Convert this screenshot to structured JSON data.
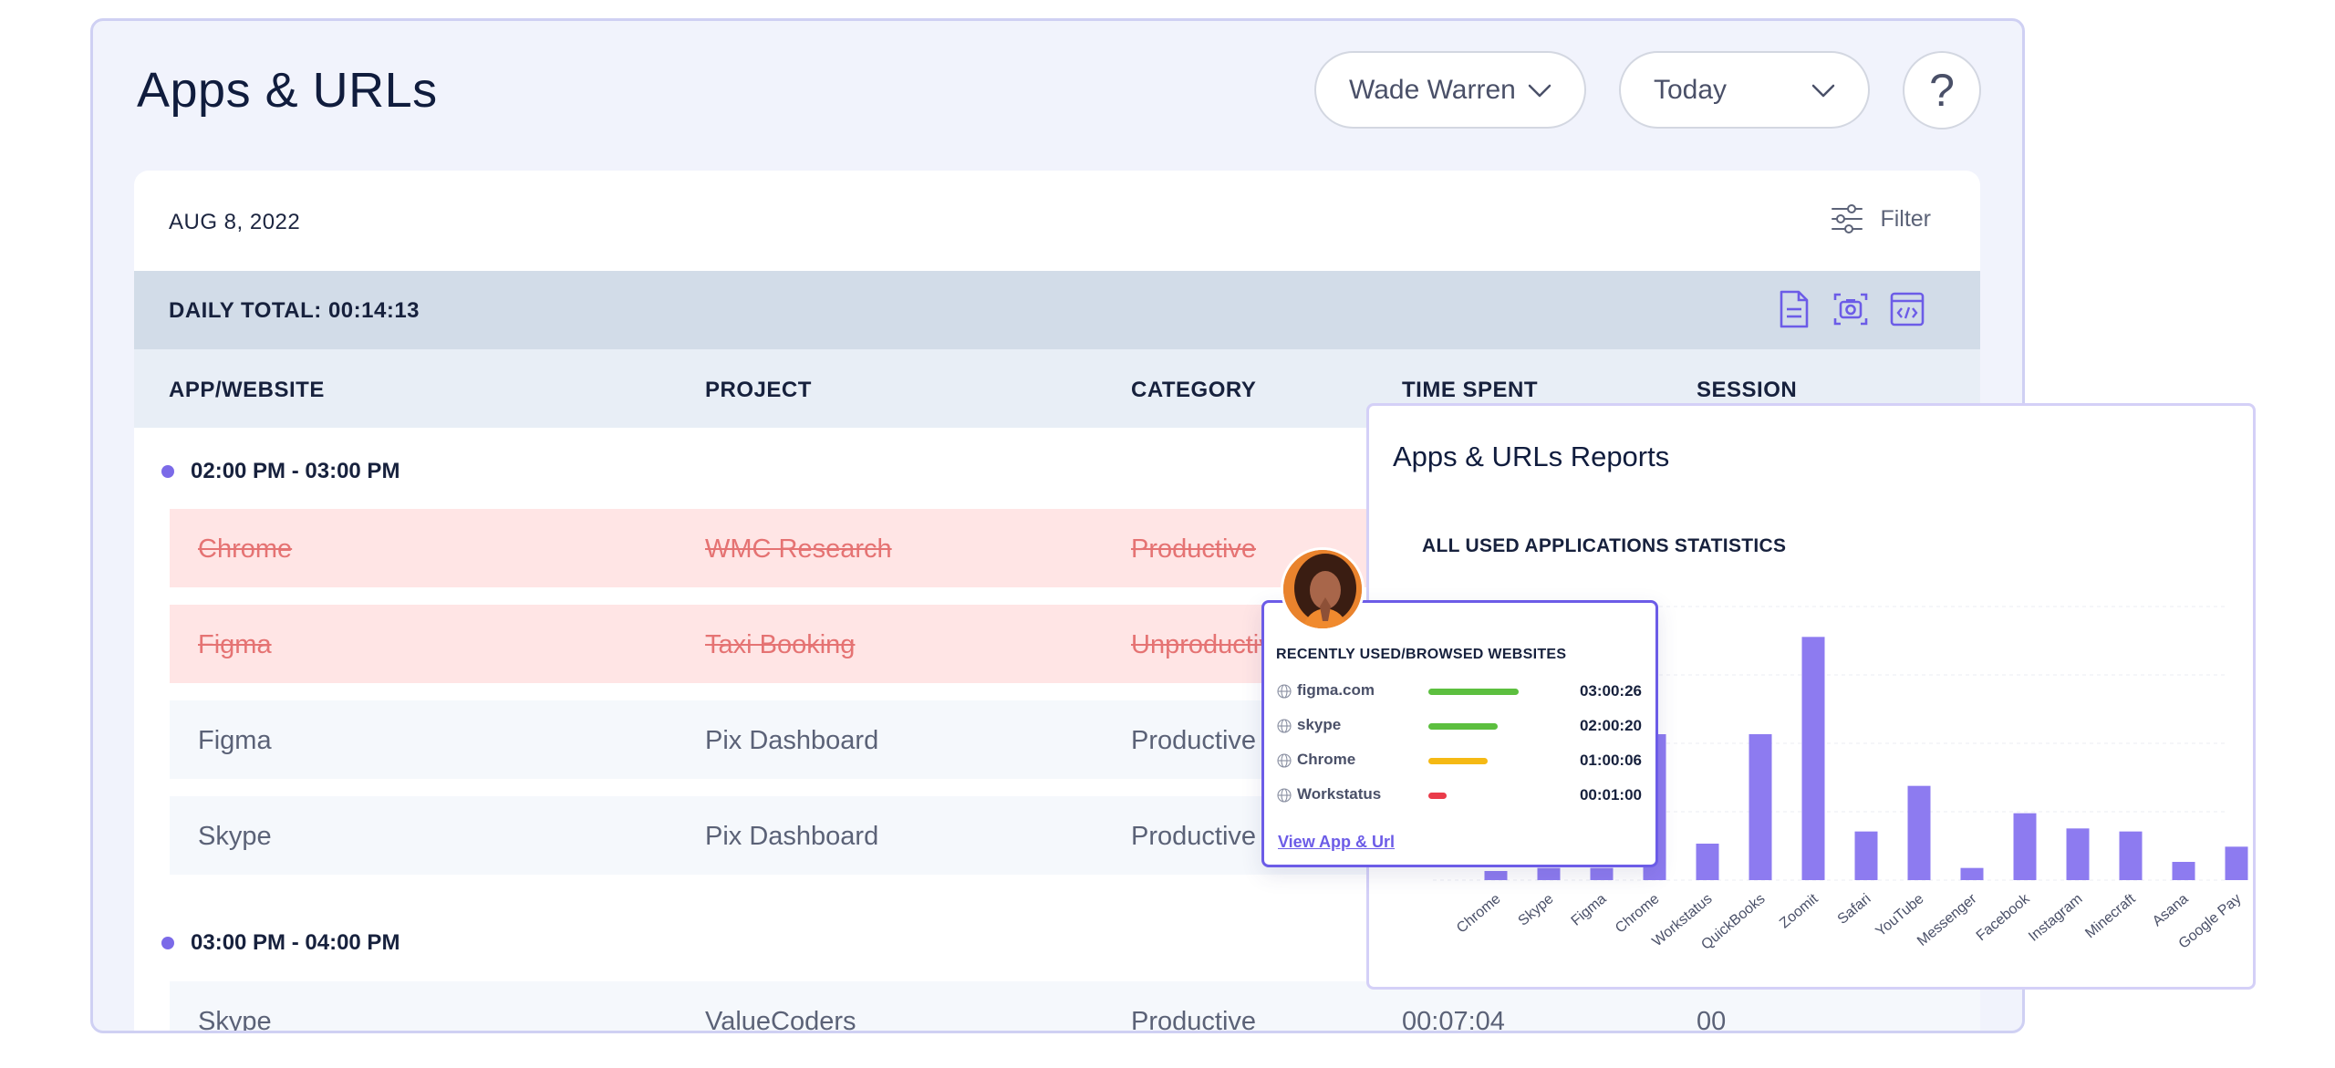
{
  "header": {
    "title": "Apps & URLs",
    "user_select": "Wade Warren",
    "date_select": "Today",
    "help_label": "?"
  },
  "card": {
    "date": "AUG 8, 2022",
    "filter_label": "Filter",
    "daily_total": "DAILY TOTAL: 00:14:13"
  },
  "table": {
    "columns": [
      "APP/WEBSITE",
      "PROJECT",
      "CATEGORY",
      "TIME SPENT",
      "SESSION"
    ],
    "groups": [
      {
        "label": "02:00 PM - 03:00 PM",
        "rows": [
          {
            "app": "Chrome",
            "project": "WMC Research",
            "category": "Productive",
            "time": "",
            "session": "",
            "removed": true
          },
          {
            "app": "Figma",
            "project": "Taxi Booking",
            "category": "Unproductive",
            "time": "",
            "session": "",
            "removed": true
          },
          {
            "app": "Figma",
            "project": "Pix Dashboard",
            "category": "Productive",
            "time": "",
            "session": "",
            "removed": false
          },
          {
            "app": "Skype",
            "project": "Pix Dashboard",
            "category": "Productive",
            "time": "",
            "session": "",
            "removed": false
          }
        ]
      },
      {
        "label": "03:00 PM - 04:00 PM",
        "rows": [
          {
            "app": "Skype",
            "project": "ValueCoders",
            "category": "Productive",
            "time": "00:07:04",
            "session": "00",
            "removed": false
          }
        ]
      }
    ]
  },
  "reports": {
    "title": "Apps & URLs Reports",
    "subtitle": "ALL USED APPLICATIONS STATISTICS"
  },
  "chart_data": {
    "type": "bar",
    "title": "ALL USED APPLICATIONS STATISTICS",
    "categories": [
      "Chrome",
      "Skype",
      "Figma",
      "Chrome",
      "Workstatus",
      "QuickBooks",
      "Zoomit",
      "Safari",
      "YouTube",
      "Messenger",
      "Facebook",
      "Instagram",
      "Minecraft",
      "Asana",
      "Google Pay"
    ],
    "values": [
      3,
      4,
      4,
      48,
      12,
      48,
      80,
      16,
      31,
      4,
      22,
      17,
      16,
      6,
      11
    ],
    "ylim": [
      0,
      90
    ],
    "bar_color": "#8d7bf0",
    "grid": true
  },
  "popup": {
    "title": "RECENTLY USED/BROWSED WEBSITES",
    "sites": [
      {
        "name": "figma.com",
        "time": "03:00:26",
        "fraction": 0.55,
        "color": "#5cbf3f"
      },
      {
        "name": "skype",
        "time": "02:00:20",
        "fraction": 0.42,
        "color": "#5cbf3f"
      },
      {
        "name": "Chrome",
        "time": "01:00:06",
        "fraction": 0.36,
        "color": "#f5b914"
      },
      {
        "name": "Workstatus",
        "time": "00:01:00",
        "fraction": 0.11,
        "color": "#ea3b4a"
      }
    ],
    "link": "View App & Url"
  }
}
